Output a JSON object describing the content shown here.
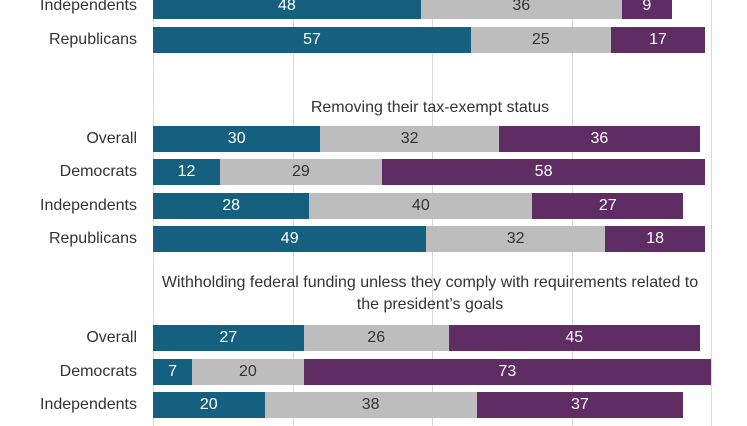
{
  "colors": {
    "support": "#15607f",
    "neutral": "#bdbdbd",
    "oppose": "#5f2d63",
    "grid": "#d9d9d9",
    "text": "#333333"
  },
  "chart_data": {
    "type": "bar",
    "orientation": "horizontal",
    "stacked": true,
    "xlim": [
      0,
      100
    ],
    "grid": true,
    "groups": [
      {
        "title": "",
        "rows": [
          {
            "label": "Independents",
            "values": [
              48,
              36,
              9
            ]
          },
          {
            "label": "Republicans",
            "values": [
              57,
              25,
              17
            ]
          }
        ]
      },
      {
        "title": "Removing their tax-exempt status",
        "rows": [
          {
            "label": "Overall",
            "values": [
              30,
              32,
              36
            ]
          },
          {
            "label": "Democrats",
            "values": [
              12,
              29,
              58
            ]
          },
          {
            "label": "Independents",
            "values": [
              28,
              40,
              27
            ]
          },
          {
            "label": "Republicans",
            "values": [
              49,
              32,
              18
            ]
          }
        ]
      },
      {
        "title": "Withholding federal funding unless they comply with requirements related to the president’s goals",
        "rows": [
          {
            "label": "Overall",
            "values": [
              27,
              26,
              45
            ]
          },
          {
            "label": "Democrats",
            "values": [
              7,
              20,
              73
            ]
          },
          {
            "label": "Independents",
            "values": [
              20,
              38,
              37
            ]
          }
        ]
      }
    ]
  }
}
